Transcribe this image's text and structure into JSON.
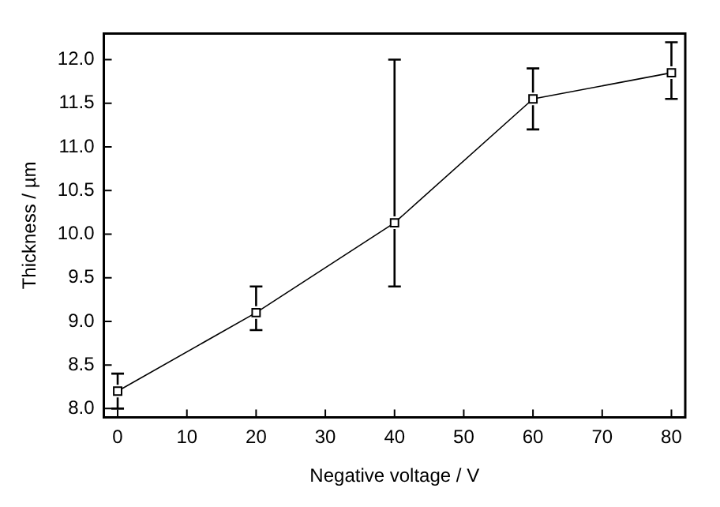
{
  "chart_data": {
    "type": "line",
    "xlabel": "Negative voltage / V",
    "ylabel": "Thickness / µm",
    "x": [
      0,
      20,
      40,
      60,
      80
    ],
    "series": [
      {
        "color": "#000000",
        "values": [
          8.2,
          9.1,
          10.13,
          11.55,
          11.85
        ],
        "errors": [
          [
            8.0,
            8.4
          ],
          [
            8.9,
            9.4
          ],
          [
            9.4,
            12.0
          ],
          [
            11.2,
            11.9
          ],
          [
            11.55,
            12.2
          ]
        ]
      }
    ],
    "xlim": [
      -2,
      82
    ],
    "xticks": [
      0,
      10,
      20,
      30,
      40,
      50,
      60,
      70,
      80
    ],
    "ylim": [
      7.9,
      12.3
    ],
    "yticks": [
      {
        "value": 8,
        "label": "8.0"
      },
      {
        "value": 8.5,
        "label": "8.5"
      },
      {
        "value": 9,
        "label": "9.0"
      },
      {
        "value": 9.5,
        "label": "9.5"
      },
      {
        "value": 10,
        "label": "10.0"
      },
      {
        "value": 10.5,
        "label": "10.5"
      },
      {
        "value": 11,
        "label": "11.0"
      },
      {
        "value": 11.5,
        "label": "11.5"
      },
      {
        "value": 12,
        "label": "12.0"
      }
    ],
    "grid": false,
    "legend": false,
    "marker": "square",
    "line_style": "solid"
  }
}
